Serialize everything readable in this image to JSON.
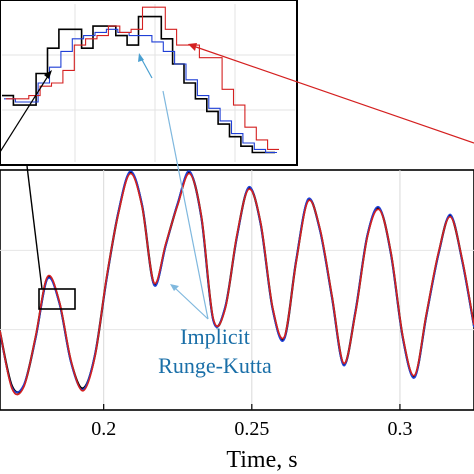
{
  "chart_data": {
    "type": "line",
    "title": "",
    "xlabel": "Time, s",
    "ylabel": "",
    "xlim": [
      0.165,
      0.325
    ],
    "ylim": [
      -1.0,
      1.0
    ],
    "grid": true,
    "xticks": [
      0.2,
      0.25,
      0.3
    ],
    "xtick_labels": [
      "0.2",
      "0.25",
      "0.3"
    ],
    "series": [
      {
        "color": "#000000",
        "x": [
          0.165,
          0.169,
          0.173,
          0.177,
          0.181,
          0.185,
          0.189,
          0.193,
          0.197,
          0.201,
          0.205,
          0.209,
          0.213,
          0.217,
          0.221,
          0.225,
          0.229,
          0.233,
          0.237,
          0.241,
          0.245,
          0.249,
          0.253,
          0.257,
          0.261,
          0.265,
          0.269,
          0.273,
          0.277,
          0.281,
          0.285,
          0.289,
          0.293,
          0.297,
          0.301,
          0.305,
          0.309,
          0.313,
          0.317,
          0.321,
          0.325
        ],
        "y": [
          -0.35,
          -0.8,
          -0.8,
          -0.4,
          0.1,
          -0.1,
          -0.6,
          -0.82,
          -0.55,
          0.1,
          0.65,
          0.98,
          0.7,
          0.05,
          0.38,
          0.72,
          0.98,
          0.6,
          -0.25,
          -0.15,
          0.45,
          0.85,
          0.55,
          -0.15,
          -0.4,
          0.25,
          0.75,
          0.5,
          -0.05,
          -0.62,
          -0.18,
          0.45,
          0.68,
          0.3,
          -0.4,
          -0.72,
          -0.2,
          0.3,
          0.62,
          0.25,
          -0.3
        ]
      },
      {
        "color": "#1f3fd6",
        "x": [
          0.165,
          0.169,
          0.173,
          0.177,
          0.181,
          0.185,
          0.189,
          0.193,
          0.197,
          0.201,
          0.205,
          0.209,
          0.213,
          0.217,
          0.221,
          0.225,
          0.229,
          0.233,
          0.237,
          0.241,
          0.245,
          0.249,
          0.253,
          0.257,
          0.261,
          0.265,
          0.269,
          0.273,
          0.277,
          0.281,
          0.285,
          0.289,
          0.293,
          0.297,
          0.301,
          0.305,
          0.309,
          0.313,
          0.317,
          0.321,
          0.325
        ],
        "y": [
          -0.36,
          -0.81,
          -0.79,
          -0.41,
          0.09,
          -0.11,
          -0.61,
          -0.83,
          -0.54,
          0.09,
          0.66,
          0.99,
          0.71,
          0.04,
          0.37,
          0.73,
          0.99,
          0.59,
          -0.26,
          -0.14,
          0.44,
          0.86,
          0.54,
          -0.16,
          -0.41,
          0.26,
          0.76,
          0.49,
          -0.06,
          -0.63,
          -0.17,
          0.46,
          0.69,
          0.29,
          -0.41,
          -0.73,
          -0.21,
          0.29,
          0.63,
          0.24,
          -0.31
        ]
      },
      {
        "color": "#d42020",
        "x": [
          0.165,
          0.169,
          0.173,
          0.177,
          0.181,
          0.185,
          0.189,
          0.193,
          0.197,
          0.201,
          0.205,
          0.209,
          0.213,
          0.217,
          0.221,
          0.225,
          0.229,
          0.233,
          0.237,
          0.241,
          0.245,
          0.249,
          0.253,
          0.257,
          0.261,
          0.265,
          0.269,
          0.273,
          0.277,
          0.281,
          0.285,
          0.289,
          0.293,
          0.297,
          0.301,
          0.305,
          0.309,
          0.313,
          0.317,
          0.321,
          0.325
        ],
        "y": [
          -0.34,
          -0.82,
          -0.81,
          -0.39,
          0.11,
          -0.09,
          -0.59,
          -0.84,
          -0.56,
          0.11,
          0.64,
          0.97,
          0.69,
          0.06,
          0.39,
          0.71,
          0.97,
          0.61,
          -0.24,
          -0.16,
          0.46,
          0.84,
          0.56,
          -0.14,
          -0.39,
          0.24,
          0.74,
          0.51,
          -0.04,
          -0.61,
          -0.19,
          0.44,
          0.67,
          0.31,
          -0.39,
          -0.71,
          -0.19,
          0.31,
          0.61,
          0.26,
          -0.29
        ]
      }
    ],
    "inset": {
      "type": "line",
      "steps": [
        {
          "color": "#000000",
          "values": [
            0.42,
            0.36,
            0.36,
            0.56,
            0.72,
            0.84,
            0.84,
            0.72,
            0.86,
            0.86,
            0.8,
            0.74,
            0.92,
            0.92,
            0.78,
            0.62,
            0.5,
            0.4,
            0.32,
            0.24,
            0.16,
            0.1,
            0.06,
            0.06
          ]
        },
        {
          "color": "#1f3fd6",
          "values": [
            0.4,
            0.38,
            0.38,
            0.5,
            0.6,
            0.7,
            0.78,
            0.8,
            0.82,
            0.84,
            0.82,
            0.8,
            0.8,
            0.76,
            0.7,
            0.62,
            0.52,
            0.42,
            0.34,
            0.26,
            0.18,
            0.12,
            0.08,
            0.06
          ]
        },
        {
          "color": "#d42020",
          "values": [
            0.4,
            0.4,
            0.42,
            0.48,
            0.5,
            0.58,
            0.74,
            0.78,
            0.8,
            0.86,
            0.82,
            0.84,
            0.98,
            0.98,
            0.84,
            0.74,
            0.74,
            0.66,
            0.66,
            0.46,
            0.36,
            0.22,
            0.14,
            0.08
          ]
        }
      ]
    },
    "annotation": {
      "lines": [
        "Implicit",
        "Runge-Kutta"
      ],
      "color": "#1a6fa8"
    }
  }
}
